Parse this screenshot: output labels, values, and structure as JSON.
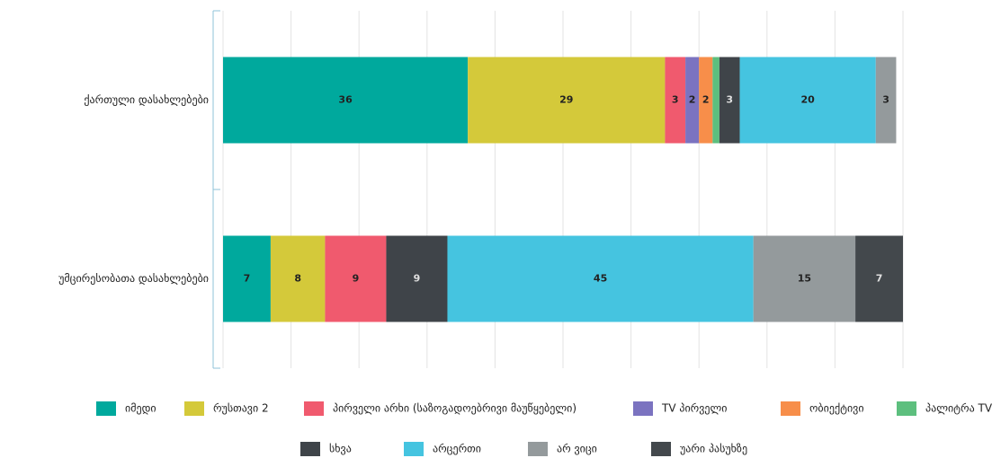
{
  "chart_data": {
    "type": "stacked-bar-horizontal",
    "categories": [
      "ქართული დასახლებები",
      "უმცირესობათა დასახლებები"
    ],
    "xlim": [
      0,
      100
    ],
    "xticks": [
      0,
      10,
      20,
      30,
      40,
      50,
      60,
      70,
      80,
      90,
      100
    ],
    "grid": true,
    "series": [
      {
        "name": "იმედი",
        "color": "#00a99d",
        "values": [
          36,
          7
        ]
      },
      {
        "name": "რუსთავი 2",
        "color": "#d4c93a",
        "values": [
          29,
          8
        ]
      },
      {
        "name": "პირველი არხი (საზოგადოებრივი მაუწყებელი)",
        "color": "#f05a6e",
        "values": [
          3,
          9
        ]
      },
      {
        "name": "TV პირველი",
        "color": "#7b73c0",
        "values": [
          2,
          null
        ]
      },
      {
        "name": "ობიექტივი",
        "color": "#f78e4a",
        "values": [
          2,
          null
        ]
      },
      {
        "name": "პალიტრა TV",
        "color": "#5dbf7e",
        "values": [
          1,
          null
        ]
      },
      {
        "name": "სხვა",
        "color": "#3f4449",
        "values": [
          3,
          9
        ]
      },
      {
        "name": "არცერთი",
        "color": "#45c4e0",
        "values": [
          20,
          45
        ]
      },
      {
        "name": "არ ვიცი",
        "color": "#949a9c",
        "values": [
          3,
          15
        ]
      },
      {
        "name": "უარი პასუხზე",
        "color": "#43484c",
        "values": [
          null,
          7
        ]
      }
    ]
  }
}
